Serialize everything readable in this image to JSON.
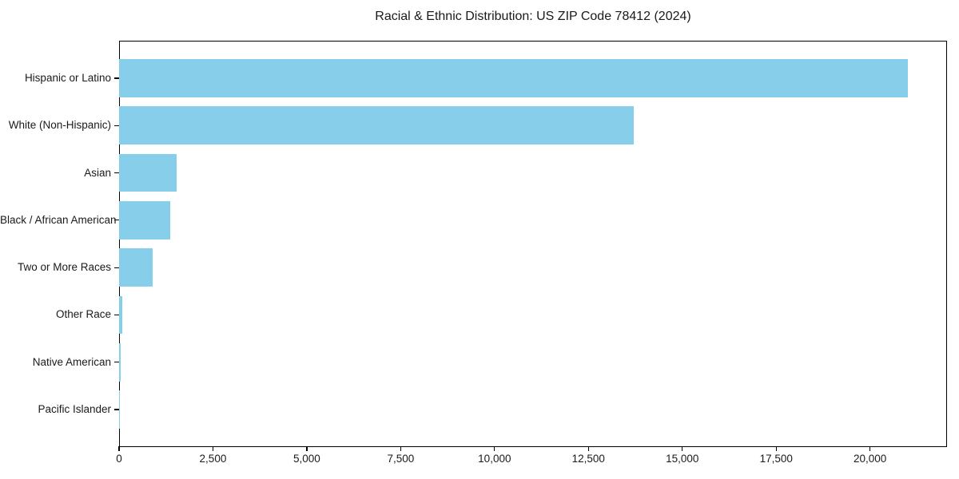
{
  "chart_data": {
    "type": "bar",
    "orientation": "horizontal",
    "title": "Racial & Ethnic Distribution: US ZIP Code 78412 (2024)",
    "categories": [
      "Hispanic or Latino",
      "White (Non-Hispanic)",
      "Asian",
      "Black / African American",
      "Two or More Races",
      "Other Race",
      "Native American",
      "Pacific Islander"
    ],
    "values": [
      21000,
      13700,
      1530,
      1370,
      895,
      80,
      40,
      15
    ],
    "xlabel": "",
    "ylabel": "",
    "xlim": [
      0,
      22050
    ],
    "x_ticks": [
      {
        "value": 0,
        "label": "0"
      },
      {
        "value": 2500,
        "label": "2,500"
      },
      {
        "value": 5000,
        "label": "5,000"
      },
      {
        "value": 7500,
        "label": "7,500"
      },
      {
        "value": 10000,
        "label": "10,000"
      },
      {
        "value": 12500,
        "label": "12,500"
      },
      {
        "value": 15000,
        "label": "15,000"
      },
      {
        "value": 17500,
        "label": "17,500"
      },
      {
        "value": 20000,
        "label": "20,000"
      }
    ],
    "grid": false,
    "legend": "none",
    "bar_color": "#87CEEB",
    "axis_color": "#000000",
    "text_color": "#1a1a1a",
    "background_color": "#ffffff"
  }
}
